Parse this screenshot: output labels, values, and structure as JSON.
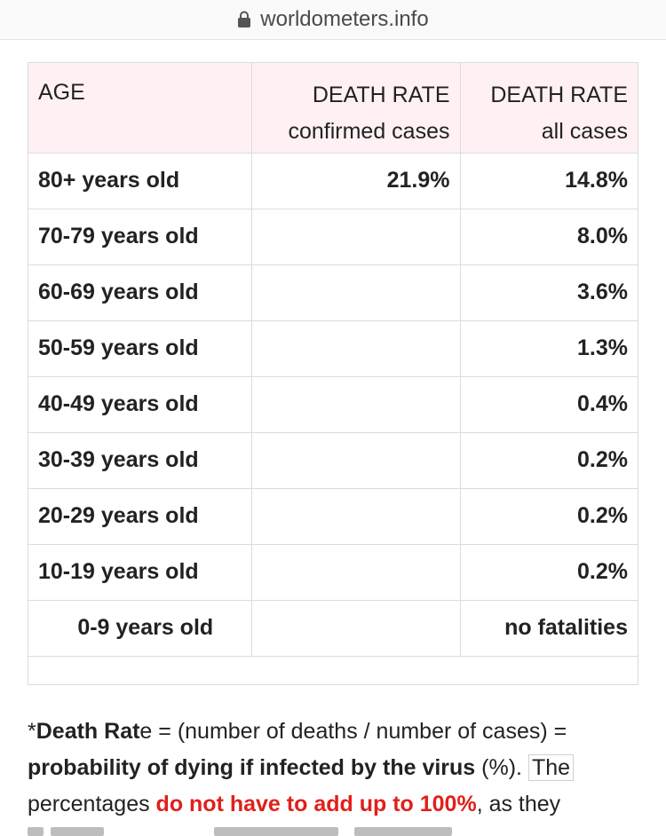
{
  "browser": {
    "domain": "worldometers.info"
  },
  "table": {
    "headers": {
      "age": "AGE",
      "confirmed_title": "DEATH RATE",
      "confirmed_sub": "confirmed cases",
      "all_title": "DEATH RATE",
      "all_sub": "all cases"
    },
    "rows": [
      {
        "age": "80+ years old",
        "confirmed": "21.9%",
        "all": "14.8%"
      },
      {
        "age": "70-79 years old",
        "confirmed": "",
        "all": "8.0%"
      },
      {
        "age": "60-69 years old",
        "confirmed": "",
        "all": "3.6%"
      },
      {
        "age": "50-59 years old",
        "confirmed": "",
        "all": "1.3%"
      },
      {
        "age": "40-49 years old",
        "confirmed": "",
        "all": "0.4%"
      },
      {
        "age": "30-39 years old",
        "confirmed": "",
        "all": "0.2%"
      },
      {
        "age": "20-29 years old",
        "confirmed": "",
        "all": "0.2%"
      },
      {
        "age": "10-19 years old",
        "confirmed": "",
        "all": "0.2%"
      },
      {
        "age": "0-9 years old",
        "confirmed": "",
        "all": "no fatalities"
      }
    ]
  },
  "note": {
    "asterisk": "*",
    "term_bold": "Death Rat",
    "term_rest": "e",
    "formula": " = (number of deaths / number of cases) = ",
    "probability_bold": "probability of dying if infected by the virus",
    "percent": " (%). ",
    "the": "The",
    "percentages": "percentages ",
    "red_text": "do not have to add up to 100%",
    "tail": ", as they"
  },
  "colors": {
    "header_bg": "#fff1f3",
    "border": "#dcdcdc",
    "highlight_red": "#e0201b"
  },
  "icons": [
    "lock-icon"
  ]
}
